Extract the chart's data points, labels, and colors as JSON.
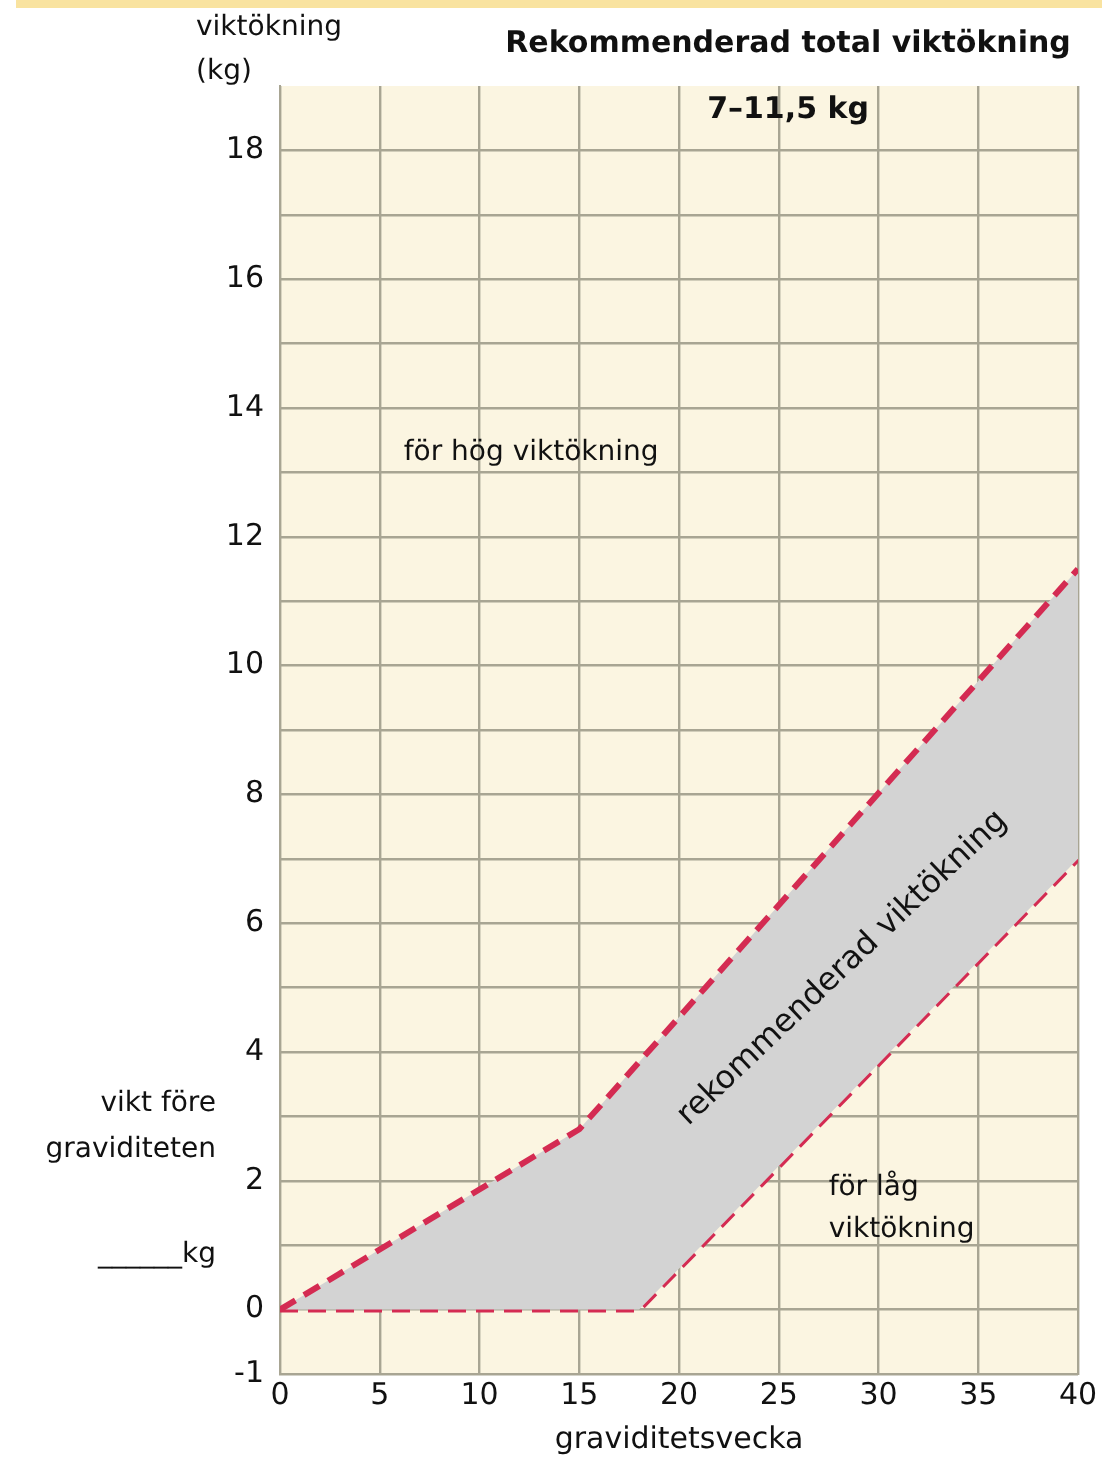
{
  "chart_data": {
    "type": "line",
    "title": "Rekommenderad total viktökning\n7–11,5 kg",
    "xlabel": "graviditetsvecka",
    "ylabel": "viktökning\n(kg)",
    "series": [
      {
        "color": "#d42b52",
        "x": [
          0,
          15,
          40
        ],
        "values": [
          0,
          2.8,
          11.5
        ]
      },
      {
        "color": "#d42b52",
        "x": [
          0,
          18,
          40
        ],
        "values": [
          0,
          0,
          7
        ]
      }
    ],
    "xlim": [
      0,
      40
    ],
    "xticks": [
      0,
      5,
      10,
      15,
      20,
      25,
      30,
      35,
      40
    ],
    "ylim": [
      -1,
      19
    ],
    "yticks": [
      -1,
      0,
      {
        "value": 1,
        "label": null
      },
      2,
      {
        "value": 3,
        "label": null
      },
      4,
      {
        "value": 5,
        "label": null
      },
      6,
      {
        "value": 7,
        "label": null
      },
      8,
      {
        "value": 9,
        "label": null
      },
      10,
      {
        "value": 11,
        "label": null
      },
      12,
      {
        "value": 13,
        "label": null
      },
      14,
      {
        "value": 15,
        "label": null
      },
      16,
      {
        "value": 17,
        "label": null
      },
      18
    ],
    "annotations": [
      "för hög viktökning",
      "rekommenderad viktökning",
      "för låg\nviktökning",
      "vikt före\ngraviditeten",
      "______kg"
    ],
    "grid": true,
    "legend": false,
    "marker": "none",
    "line_style": "dashed"
  }
}
